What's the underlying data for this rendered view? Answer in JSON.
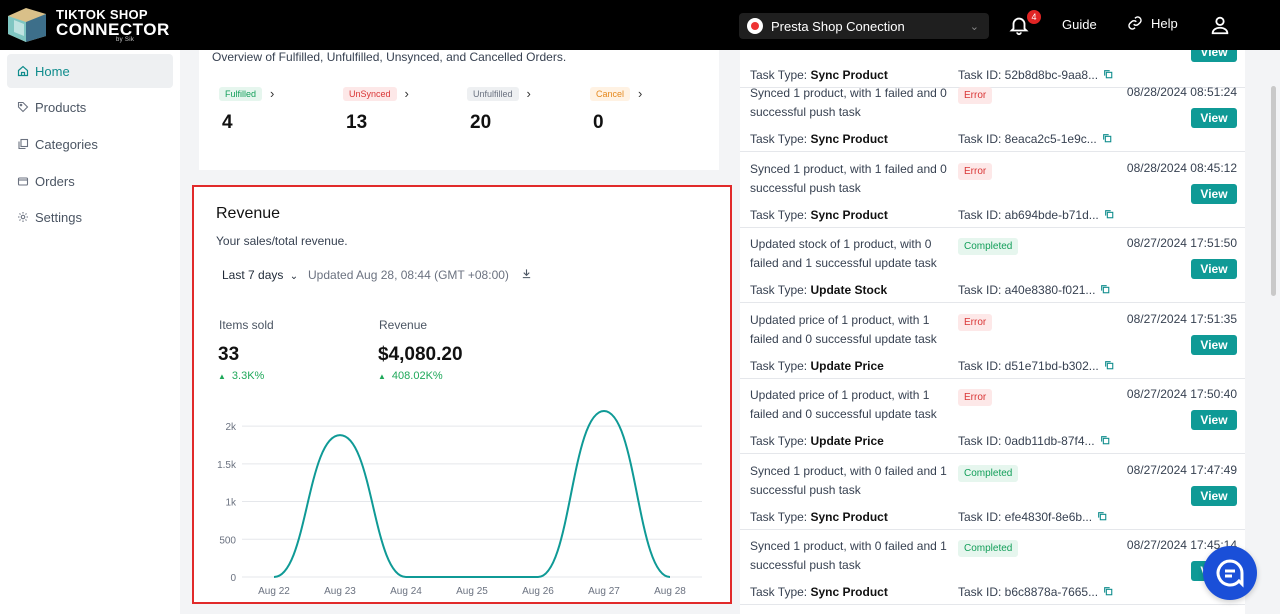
{
  "brand": {
    "line1": "TIKTOK SHOP",
    "line2": "CONNECTOR",
    "byline": "by Sik"
  },
  "header": {
    "shop_select": "Presta Shop Conection",
    "notification_count": "4",
    "guide": "Guide",
    "help": "Help"
  },
  "sidebar": {
    "items": [
      {
        "label": "Home",
        "icon": "home-icon"
      },
      {
        "label": "Products",
        "icon": "tag-icon"
      },
      {
        "label": "Categories",
        "icon": "copy-icon"
      },
      {
        "label": "Orders",
        "icon": "box-icon"
      },
      {
        "label": "Settings",
        "icon": "gear-icon"
      }
    ]
  },
  "overview": {
    "description": "Overview of Fulfilled, Unfulfilled, Unsynced, and Cancelled Orders.",
    "stats": [
      {
        "label": "Fulfilled",
        "value": "4",
        "color": "green"
      },
      {
        "label": "UnSynced",
        "value": "13",
        "color": "red"
      },
      {
        "label": "Unfulfilled",
        "value": "20",
        "color": "gray"
      },
      {
        "label": "Cancel",
        "value": "0",
        "color": "orange"
      }
    ]
  },
  "revenue": {
    "title": "Revenue",
    "subtitle": "Your sales/total revenue.",
    "range": "Last 7 days",
    "updated": "Updated Aug 28, 08:44 (GMT +08:00)",
    "items_sold_label": "Items sold",
    "items_sold_value": "33",
    "items_sold_change": "3.3K%",
    "revenue_label": "Revenue",
    "revenue_value": "$4,080.20",
    "revenue_change": "408.02K%"
  },
  "chart_data": {
    "type": "line",
    "categories": [
      "Aug 22",
      "Aug 23",
      "Aug 24",
      "Aug 25",
      "Aug 26",
      "Aug 27",
      "Aug 28"
    ],
    "values": [
      0,
      1880,
      0,
      0,
      0,
      2200,
      0
    ],
    "yticks": [
      "0",
      "500",
      "1k",
      "1.5k",
      "2k"
    ],
    "ylim": [
      0,
      2200
    ],
    "color": "#0f9a96"
  },
  "tasks": [
    {
      "message": "",
      "status": "",
      "status_color": "",
      "type_label": "Task Type:",
      "type": "Sync Product",
      "task_id": "Task ID: 52b8d8bc-9aa8...",
      "date": ""
    },
    {
      "message": "Synced 1 product, with 1 failed and 0 successful push task",
      "status": "Error",
      "status_color": "red",
      "type_label": "Task Type:",
      "type": "Sync Product",
      "task_id": "Task ID: 8eaca2c5-1e9c...",
      "date": "08/28/2024 08:51:24"
    },
    {
      "message": "Synced 1 product, with 1 failed and 0 successful push task",
      "status": "Error",
      "status_color": "red",
      "type_label": "Task Type:",
      "type": "Sync Product",
      "task_id": "Task ID: ab694bde-b71d...",
      "date": "08/28/2024 08:45:12"
    },
    {
      "message": "Updated stock of 1 product, with 0 failed and 1 successful update task",
      "status": "Completed",
      "status_color": "green",
      "type_label": "Task Type:",
      "type": "Update Stock",
      "task_id": "Task ID: a40e8380-f021...",
      "date": "08/27/2024 17:51:50"
    },
    {
      "message": "Updated price of 1 product, with 1 failed and 0 successful update task",
      "status": "Error",
      "status_color": "red",
      "type_label": "Task Type:",
      "type": "Update Price",
      "task_id": "Task ID: d51e71bd-b302...",
      "date": "08/27/2024 17:51:35"
    },
    {
      "message": "Updated price of 1 product, with 1 failed and 0 successful update task",
      "status": "Error",
      "status_color": "red",
      "type_label": "Task Type:",
      "type": "Update Price",
      "task_id": "Task ID: 0adb11db-87f4...",
      "date": "08/27/2024 17:50:40"
    },
    {
      "message": "Synced 1 product, with 0 failed and 1 successful push task",
      "status": "Completed",
      "status_color": "green",
      "type_label": "Task Type:",
      "type": "Sync Product",
      "task_id": "Task ID: efe4830f-8e6b...",
      "date": "08/27/2024 17:47:49"
    },
    {
      "message": "Synced 1 product, with 0 failed and 1 successful push task",
      "status": "Completed",
      "status_color": "green",
      "type_label": "Task Type:",
      "type": "Sync Product",
      "task_id": "Task ID: b6c8878a-7665...",
      "date": "08/27/2024 17:45:14"
    }
  ],
  "view_label": "View"
}
